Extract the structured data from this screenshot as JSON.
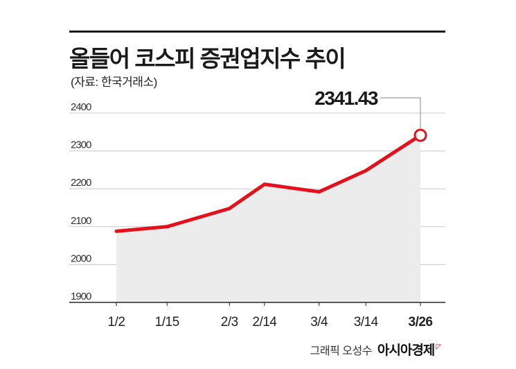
{
  "title": "올들어 코스피 증권업지수 추이",
  "source": "(자료: 한국거래소)",
  "footer": {
    "credit": "그래픽 오성수",
    "brand": "아시아경제"
  },
  "colors": {
    "line": "#e3111b",
    "area": "#ececec",
    "grid": "#c8c8c8",
    "axis": "#222222"
  },
  "chart_data": {
    "type": "area",
    "categories": [
      "1/2",
      "1/15",
      "2/3",
      "2/14",
      "3/4",
      "3/14",
      "3/26"
    ],
    "x": [
      0,
      13,
      29,
      38,
      52,
      64,
      78
    ],
    "values": [
      2088,
      2100,
      2148,
      2212,
      2192,
      2248,
      2341.43
    ],
    "yticks": [
      1900,
      2000,
      2100,
      2200,
      2300,
      2400
    ],
    "ylim": [
      1900,
      2400
    ],
    "grid": true,
    "annotation": {
      "label": "2341.43",
      "index": 6
    }
  }
}
